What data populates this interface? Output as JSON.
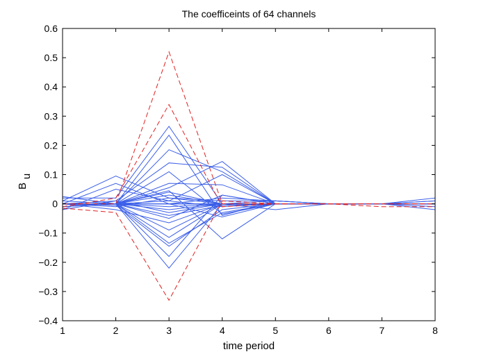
{
  "chart_data": {
    "type": "line",
    "title": "The coefficeints of 64 channels",
    "xlabel": "time period",
    "ylabel_main": "B",
    "ylabel_sub": "u",
    "xlim": [
      1,
      8
    ],
    "ylim": [
      -0.4,
      0.6
    ],
    "x": [
      1,
      2,
      3,
      4,
      5,
      6,
      7,
      8
    ],
    "x_ticks": [
      1,
      2,
      3,
      4,
      5,
      6,
      7,
      8
    ],
    "x_tick_labels": [
      "1",
      "2",
      "3",
      "4",
      "5",
      "6",
      "7",
      "8"
    ],
    "y_ticks": [
      -0.4,
      -0.3,
      -0.2,
      -0.1,
      0,
      0.1,
      0.2,
      0.3,
      0.4,
      0.5,
      0.6
    ],
    "y_tick_labels": [
      "−0.4",
      "−0.3",
      "−0.2",
      "−0.1",
      "0",
      "0.1",
      "0.2",
      "0.3",
      "0.4",
      "0.5",
      "0.6"
    ],
    "grid": false,
    "colors": {
      "solid": "#3a5ee8",
      "dashed": "#e02020",
      "axes": "#000000"
    },
    "series": [
      {
        "name": "red-dashed-1",
        "style": "dashed",
        "values": [
          0.0,
          0.0,
          0.52,
          0.0,
          0.0,
          0.0,
          0.0,
          0.0
        ]
      },
      {
        "name": "red-dashed-2",
        "style": "dashed",
        "values": [
          -0.01,
          0.02,
          0.34,
          -0.01,
          0.0,
          0.0,
          0.0,
          0.0
        ]
      },
      {
        "name": "red-dashed-3",
        "style": "dashed",
        "values": [
          -0.015,
          -0.03,
          -0.33,
          0.01,
          0.0,
          0.0,
          -0.01,
          -0.01
        ]
      },
      {
        "name": "blue-01",
        "style": "solid",
        "values": [
          0.02,
          0.02,
          0.265,
          0.0,
          0.0,
          0.0,
          0.0,
          0.01
        ]
      },
      {
        "name": "blue-02",
        "style": "solid",
        "values": [
          -0.01,
          0.0,
          0.235,
          -0.04,
          0.01,
          0.0,
          0.0,
          0.0
        ]
      },
      {
        "name": "blue-03",
        "style": "solid",
        "values": [
          0.0,
          0.0,
          0.185,
          0.11,
          0.0,
          0.0,
          0.0,
          0.0
        ]
      },
      {
        "name": "blue-04",
        "style": "solid",
        "values": [
          0.0,
          0.01,
          0.14,
          0.125,
          0.0,
          0.0,
          0.0,
          0.0
        ]
      },
      {
        "name": "blue-05",
        "style": "solid",
        "values": [
          0.0,
          0.0,
          0.11,
          -0.035,
          0.0,
          0.0,
          0.0,
          0.0
        ]
      },
      {
        "name": "blue-06",
        "style": "solid",
        "values": [
          0.01,
          0.095,
          0.02,
          0.0,
          0.0,
          0.0,
          0.0,
          0.0
        ]
      },
      {
        "name": "blue-07",
        "style": "solid",
        "values": [
          0.0,
          0.0,
          0.055,
          0.145,
          0.0,
          0.0,
          0.0,
          0.0
        ]
      },
      {
        "name": "blue-08",
        "style": "solid",
        "values": [
          0.0,
          0.0,
          0.07,
          0.065,
          0.0,
          0.0,
          0.0,
          0.0
        ]
      },
      {
        "name": "blue-09",
        "style": "solid",
        "values": [
          0.025,
          0.0,
          0.045,
          -0.12,
          0.0,
          0.0,
          0.0,
          0.0
        ]
      },
      {
        "name": "blue-10",
        "style": "solid",
        "values": [
          -0.02,
          0.05,
          0.01,
          0.1,
          0.0,
          0.0,
          0.0,
          0.0
        ]
      },
      {
        "name": "blue-11",
        "style": "solid",
        "values": [
          0.0,
          0.0,
          -0.22,
          0.0,
          0.01,
          0.0,
          0.0,
          0.0
        ]
      },
      {
        "name": "blue-12",
        "style": "solid",
        "values": [
          0.0,
          0.0,
          -0.18,
          0.03,
          0.0,
          0.0,
          0.0,
          0.0
        ]
      },
      {
        "name": "blue-13",
        "style": "solid",
        "values": [
          0.0,
          -0.005,
          -0.145,
          -0.02,
          0.0,
          0.0,
          0.0,
          0.0
        ]
      },
      {
        "name": "blue-14",
        "style": "solid",
        "values": [
          0.0,
          0.0,
          -0.135,
          -0.03,
          0.0,
          0.0,
          0.0,
          0.0
        ]
      },
      {
        "name": "blue-15",
        "style": "solid",
        "values": [
          0.0,
          0.0,
          -0.115,
          0.0,
          0.0,
          0.0,
          0.0,
          0.0
        ]
      },
      {
        "name": "blue-16",
        "style": "solid",
        "values": [
          0.0,
          0.0,
          -0.09,
          0.0,
          0.0,
          0.0,
          0.0,
          0.0
        ]
      },
      {
        "name": "blue-17",
        "style": "solid",
        "values": [
          0.0,
          -0.02,
          -0.065,
          0.0,
          0.0,
          0.0,
          0.0,
          0.0
        ]
      },
      {
        "name": "blue-18",
        "style": "solid",
        "values": [
          0.0,
          0.0,
          -0.05,
          0.03,
          0.0,
          0.0,
          0.0,
          0.0
        ]
      },
      {
        "name": "blue-19",
        "style": "solid",
        "values": [
          0.0,
          0.0,
          -0.04,
          -0.005,
          0.0,
          0.0,
          0.0,
          0.0
        ]
      },
      {
        "name": "blue-20",
        "style": "solid",
        "values": [
          -0.02,
          0.01,
          -0.03,
          0.0,
          0.0,
          0.0,
          0.0,
          0.0
        ]
      },
      {
        "name": "blue-21",
        "style": "solid",
        "values": [
          0.0,
          0.07,
          0.0,
          0.0,
          0.0,
          0.0,
          0.0,
          0.0
        ]
      },
      {
        "name": "blue-22",
        "style": "solid",
        "values": [
          0.0,
          0.0,
          0.04,
          0.0,
          0.0,
          0.0,
          0.0,
          0.02
        ]
      },
      {
        "name": "blue-23",
        "style": "solid",
        "values": [
          0.0,
          0.0,
          0.03,
          0.0,
          0.0,
          0.0,
          0.0,
          -0.02
        ]
      },
      {
        "name": "blue-24",
        "style": "solid",
        "values": [
          0.0,
          -0.01,
          0.02,
          0.01,
          0.01,
          0.0,
          0.0,
          0.0
        ]
      },
      {
        "name": "blue-25",
        "style": "solid",
        "values": [
          0.0,
          0.0,
          0.01,
          -0.01,
          0.0,
          0.0,
          0.0,
          0.0
        ]
      },
      {
        "name": "blue-26",
        "style": "solid",
        "values": [
          0.0,
          0.0,
          0.0,
          0.02,
          0.01,
          0.0,
          0.0,
          0.0
        ]
      },
      {
        "name": "blue-27",
        "style": "solid",
        "values": [
          0.0,
          0.0,
          -0.01,
          0.0,
          0.0,
          0.0,
          0.0,
          0.0
        ]
      },
      {
        "name": "blue-28",
        "style": "solid",
        "values": [
          0.0,
          0.0,
          -0.02,
          0.0,
          0.0,
          0.0,
          0.0,
          0.0
        ]
      },
      {
        "name": "blue-29",
        "style": "solid",
        "values": [
          0.0,
          0.0,
          0.0,
          0.0,
          -0.02,
          0.0,
          0.0,
          0.0
        ]
      },
      {
        "name": "blue-30",
        "style": "solid",
        "values": [
          0.0,
          0.0,
          0.0,
          -0.045,
          0.0,
          0.0,
          0.0,
          0.0
        ]
      },
      {
        "name": "blue-31",
        "style": "solid",
        "values": [
          0.01,
          0.0,
          0.0,
          0.0,
          0.0,
          0.0,
          0.0,
          0.01
        ]
      },
      {
        "name": "blue-32",
        "style": "solid",
        "values": [
          -0.01,
          0.0,
          0.0,
          0.0,
          0.0,
          0.0,
          0.0,
          -0.01
        ]
      }
    ]
  }
}
